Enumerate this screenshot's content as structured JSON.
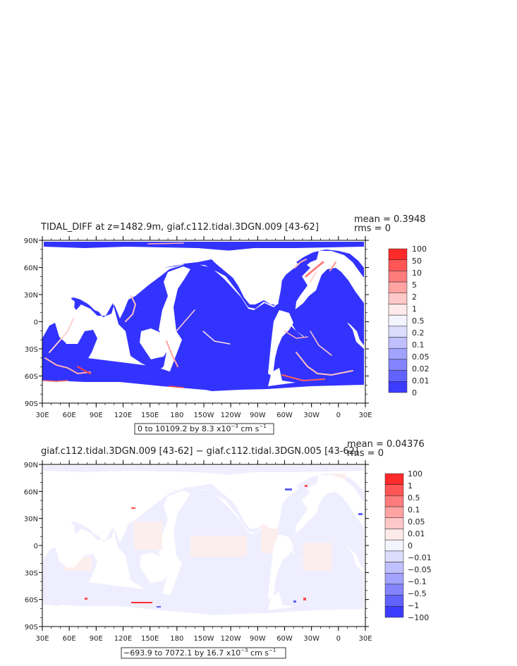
{
  "panels": [
    {
      "title": "TIDAL_DIFF at z=1482.9m, giaf.c112.tidal.3DGN.009 [43-62]",
      "mean_text": "mean = 0.3948",
      "rms_text": "rms = 0",
      "lat_labels": [
        "90N",
        "60N",
        "30N",
        "0",
        "30S",
        "60S",
        "90S"
      ],
      "lon_labels": [
        "30E",
        "60E",
        "90E",
        "120E",
        "150E",
        "180",
        "150W",
        "120W",
        "90W",
        "60W",
        "30W",
        "0",
        "30E"
      ],
      "range_text": "0 to 10109.2 by 8.3 x10",
      "range_exp": "−3",
      "range_units": " cm s",
      "range_units_exp": "−1",
      "colorbar_labels": [
        "100",
        "50",
        "10",
        "5",
        "2",
        "1",
        "0.5",
        "0.2",
        "0.1",
        "0.05",
        "0.02",
        "0.01",
        "0"
      ],
      "colorbar_colors": [
        "#ff2a2a",
        "#ff5555",
        "#ff7c7c",
        "#ffa3a3",
        "#ffc8c8",
        "#ffeaea",
        "#f4f4ff",
        "#dcdcff",
        "#c0c0ff",
        "#a2a2ff",
        "#8484ff",
        "#6262ff",
        "#3c3cff"
      ],
      "ocean_color": "#3333ff",
      "land_color": "#ffffff"
    },
    {
      "title": "giaf.c112.tidal.3DGN.009 [43-62] − giaf.c112.tidal.3DGN.005 [43-62]",
      "mean_text": "mean = 0.04376",
      "rms_text": "rms = 0",
      "lat_labels": [
        "90N",
        "60N",
        "30N",
        "0",
        "30S",
        "60S",
        "90S"
      ],
      "lon_labels": [
        "30E",
        "60E",
        "90E",
        "120E",
        "150E",
        "180",
        "150W",
        "120W",
        "90W",
        "60W",
        "30W",
        "0",
        "30E"
      ],
      "range_text": "−693.9 to 7072.1 by 16.7 x10",
      "range_exp": "−3",
      "range_units": " cm s",
      "range_units_exp": "−1",
      "colorbar_labels": [
        "100",
        "1",
        "0.5",
        "0.1",
        "0.05",
        "0.01",
        "0",
        "−0.01",
        "−0.05",
        "−0.1",
        "−0.5",
        "−1",
        "−100"
      ],
      "colorbar_colors": [
        "#ff2a2a",
        "#ff5555",
        "#ff7c7c",
        "#ffa3a3",
        "#ffc8c8",
        "#ffeaea",
        "#f4f4ff",
        "#dcdcff",
        "#c0c0ff",
        "#a2a2ff",
        "#8484ff",
        "#6262ff",
        "#3c3cff"
      ],
      "ocean_color": "#eeeeff",
      "land_color": "#ffffff"
    }
  ]
}
